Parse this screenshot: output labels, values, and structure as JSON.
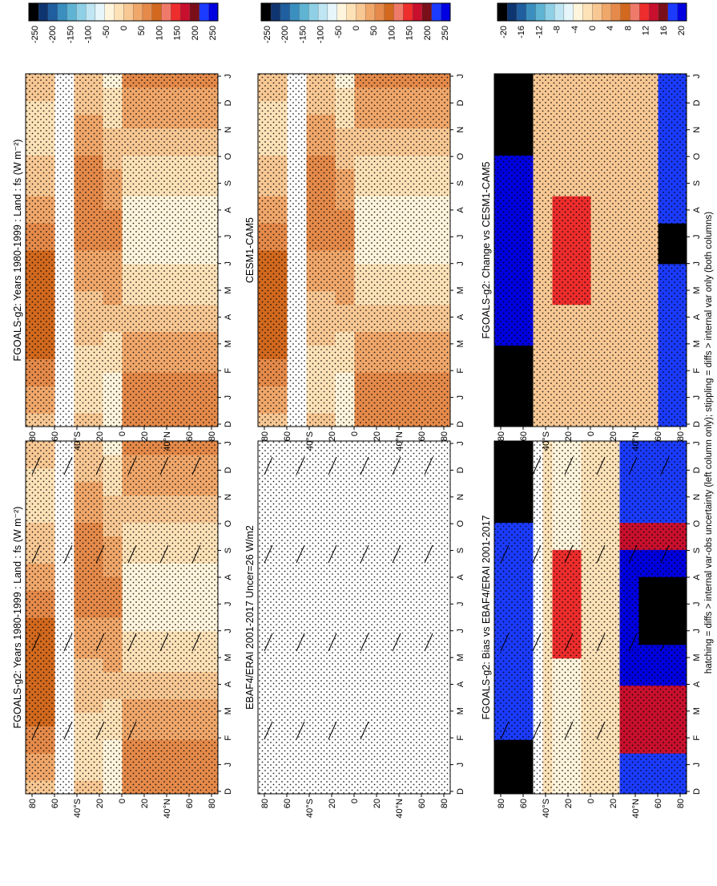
{
  "figure": {
    "footer_note": "hatching = diffs > internal var-obs uncertainty (left column only); stippling = diffs > internal var only (both columns)"
  },
  "chart_data": [
    {
      "type": "heatmap",
      "title": "FGOALS-g2: Years 1980-1999 : Land : fs (W m⁻²)",
      "months": [
        "D",
        "J",
        "F",
        "M",
        "A",
        "M",
        "J",
        "J",
        "A",
        "S",
        "O",
        "N",
        "D",
        "J"
      ],
      "lat_ticks": [
        "80",
        "60",
        "40°N",
        "20",
        "0",
        "20",
        "40°S",
        "60",
        "80"
      ],
      "colorbar_labels": [
        "250",
        "200",
        "150",
        "100",
        "50",
        "0",
        "-50",
        "-100",
        "-150",
        "-200",
        "-250"
      ],
      "colorbar_colors": [
        "#0000e0",
        "#1b3bff",
        "#7a0f1a",
        "#c8102e",
        "#ee2d2d",
        "#f07a6a",
        "#d2691e",
        "#e58a4a",
        "#f0a76a",
        "#f8c894",
        "#fde2b8",
        "#fff4dc",
        "#e6f6fb",
        "#bfe6f2",
        "#8fd0e6",
        "#5fb3d3",
        "#3b8fbf",
        "#1f5f9f",
        "#0f3570",
        "#000000"
      ],
      "hatching": true,
      "style": "model"
    },
    {
      "type": "heatmap",
      "title": "FGOALS-g2: Years 1980-1999 : Land : fs (W m⁻²)",
      "months": [
        "D",
        "J",
        "F",
        "M",
        "A",
        "M",
        "J",
        "J",
        "A",
        "S",
        "O",
        "N",
        "D",
        "J"
      ],
      "lat_ticks": [
        "80",
        "60",
        "40°N",
        "20",
        "0",
        "20",
        "40°S",
        "60",
        "80"
      ],
      "colorbar_labels": [
        "250",
        "200",
        "150",
        "100",
        "50",
        "0",
        "-50",
        "-100",
        "-150",
        "-200",
        "-250"
      ],
      "colorbar_colors": [
        "#0000e0",
        "#1b3bff",
        "#7a0f1a",
        "#c8102e",
        "#ee2d2d",
        "#f07a6a",
        "#d2691e",
        "#e58a4a",
        "#f0a76a",
        "#f8c894",
        "#fde2b8",
        "#fff4dc",
        "#e6f6fb",
        "#bfe6f2",
        "#8fd0e6",
        "#5fb3d3",
        "#3b8fbf",
        "#1f5f9f",
        "#0f3570",
        "#000000"
      ],
      "hatching": false,
      "style": "model"
    },
    {
      "type": "heatmap",
      "title": "EBAF4/ERAI 2001-2017 Uncer=26 W/m2",
      "months": [
        "D",
        "J",
        "F",
        "M",
        "A",
        "M",
        "J",
        "J",
        "A",
        "S",
        "O",
        "N",
        "D",
        "J"
      ],
      "lat_ticks": [
        "80",
        "60",
        "40°N",
        "20",
        "0",
        "20",
        "40°S",
        "60",
        "80"
      ],
      "colorbar_labels": [
        "250",
        "200",
        "150",
        "100",
        "50",
        "0",
        "-50",
        "-100",
        "-150",
        "-200",
        "-250"
      ],
      "colorbar_colors": [
        "#0000e0",
        "#1b3bff",
        "#7a0f1a",
        "#c8102e",
        "#ee2d2d",
        "#f07a6a",
        "#d2691e",
        "#e58a4a",
        "#f0a76a",
        "#f8c894",
        "#fde2b8",
        "#fff4dc",
        "#e6f6fb",
        "#bfe6f2",
        "#8fd0e6",
        "#5fb3d3",
        "#3b8fbf",
        "#1f5f9f",
        "#0f3570",
        "#000000"
      ],
      "hatching": true,
      "style": "obs"
    },
    {
      "type": "heatmap",
      "title": "CESM1-CAM5",
      "months": [
        "D",
        "J",
        "F",
        "M",
        "A",
        "M",
        "J",
        "J",
        "A",
        "S",
        "O",
        "N",
        "D",
        "J"
      ],
      "lat_ticks": [
        "80",
        "60",
        "40°N",
        "20",
        "0",
        "20",
        "40°S",
        "60",
        "80"
      ],
      "colorbar_labels": [
        "250",
        "200",
        "150",
        "100",
        "50",
        "0",
        "-50",
        "-100",
        "-150",
        "-200",
        "-250"
      ],
      "colorbar_colors": [
        "#0000e0",
        "#1b3bff",
        "#7a0f1a",
        "#c8102e",
        "#ee2d2d",
        "#f07a6a",
        "#d2691e",
        "#e58a4a",
        "#f0a76a",
        "#f8c894",
        "#fde2b8",
        "#fff4dc",
        "#e6f6fb",
        "#bfe6f2",
        "#8fd0e6",
        "#5fb3d3",
        "#3b8fbf",
        "#1f5f9f",
        "#0f3570",
        "#000000"
      ],
      "hatching": false,
      "style": "model"
    },
    {
      "type": "heatmap",
      "title": "FGOALS-g2: Bias vs EBAF4/ERAI 2001-2017",
      "months": [
        "D",
        "J",
        "F",
        "M",
        "A",
        "M",
        "J",
        "J",
        "A",
        "S",
        "O",
        "N",
        "D",
        "J"
      ],
      "lat_ticks": [
        "80",
        "60",
        "40°N",
        "20",
        "0",
        "20",
        "40°S",
        "60",
        "80"
      ],
      "colorbar_labels": [
        "20",
        "16",
        "12",
        "8",
        "4",
        "0",
        "-4",
        "-8",
        "-12",
        "-16",
        "-20"
      ],
      "colorbar_colors": [
        "#0000e0",
        "#1b3bff",
        "#7a0f1a",
        "#c8102e",
        "#ee2d2d",
        "#f07a6a",
        "#d2691e",
        "#e58a4a",
        "#f0a76a",
        "#f8c894",
        "#fde2b8",
        "#fff4dc",
        "#e6f6fb",
        "#bfe6f2",
        "#8fd0e6",
        "#5fb3d3",
        "#3b8fbf",
        "#1f5f9f",
        "#0f3570",
        "#000000"
      ],
      "hatching": true,
      "style": "bias"
    },
    {
      "type": "heatmap",
      "title": "FGOALS-g2: Change vs CESM1-CAM5",
      "months": [
        "D",
        "J",
        "F",
        "M",
        "A",
        "M",
        "J",
        "J",
        "A",
        "S",
        "O",
        "N",
        "D",
        "J"
      ],
      "lat_ticks": [
        "80",
        "60",
        "40°N",
        "20",
        "0",
        "20",
        "40°S",
        "60",
        "80"
      ],
      "colorbar_labels": [
        "20",
        "16",
        "12",
        "8",
        "4",
        "0",
        "-4",
        "-8",
        "-12",
        "-16",
        "-20"
      ],
      "colorbar_colors": [
        "#0000e0",
        "#1b3bff",
        "#7a0f1a",
        "#c8102e",
        "#ee2d2d",
        "#f07a6a",
        "#d2691e",
        "#e58a4a",
        "#f0a76a",
        "#f8c894",
        "#fde2b8",
        "#fff4dc",
        "#e6f6fb",
        "#bfe6f2",
        "#8fd0e6",
        "#5fb3d3",
        "#3b8fbf",
        "#1f5f9f",
        "#0f3570",
        "#000000"
      ],
      "hatching": false,
      "style": "change"
    }
  ]
}
